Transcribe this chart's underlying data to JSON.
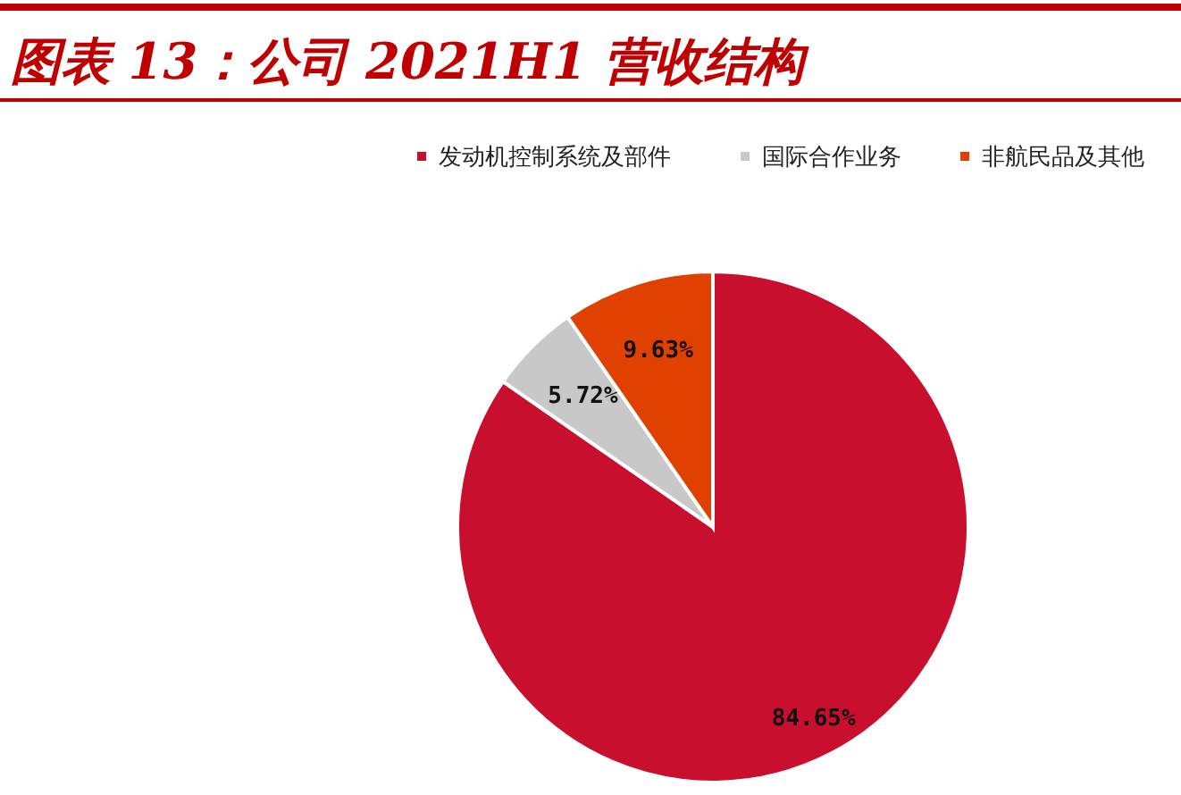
{
  "chart_data": {
    "type": "pie",
    "title": "图表 13：公司 2021H1 营收结构",
    "categories": [
      "发动机控制系统及部件",
      "国际合作业务",
      "非航民品及其他"
    ],
    "values": [
      84.65,
      5.72,
      9.63
    ],
    "colors": [
      "#c8102e",
      "#c8c8c8",
      "#e04000"
    ],
    "value_labels": [
      "84.65%",
      "5.72%",
      "9.63%"
    ],
    "legend": "top right"
  }
}
